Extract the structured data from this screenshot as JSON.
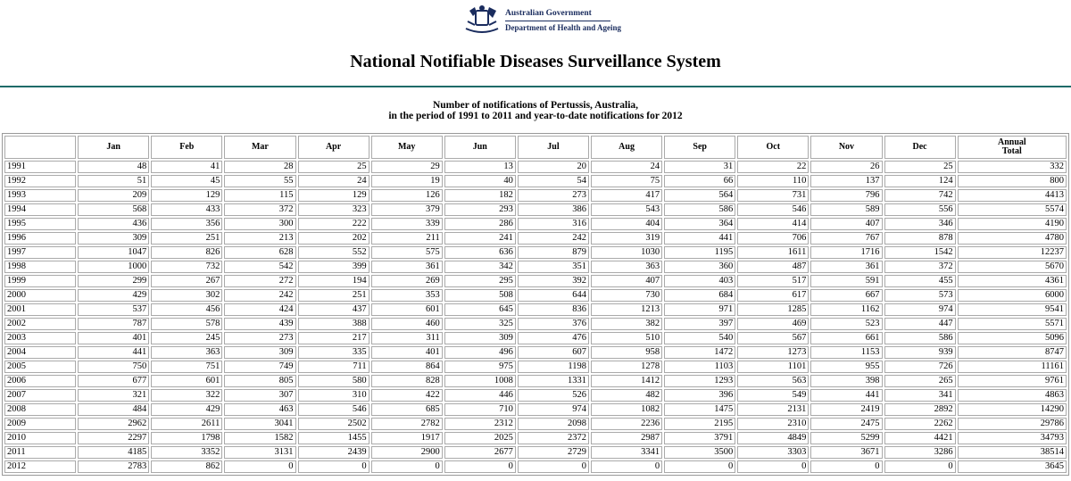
{
  "header": {
    "logo_lines": [
      "Australian Government",
      "Department of Health and Ageing"
    ],
    "title": "National Notifiable Diseases Surveillance System"
  },
  "subtitle": [
    "Number of notifications of Pertussis, Australia,",
    "in the period of 1991 to 2011 and year-to-date notifications for 2012"
  ],
  "table": {
    "columns": [
      "Jan",
      "Feb",
      "Mar",
      "Apr",
      "May",
      "Jun",
      "Jul",
      "Aug",
      "Sep",
      "Oct",
      "Nov",
      "Dec",
      "Annual Total"
    ],
    "rows": [
      [
        "1991",
        48,
        41,
        28,
        25,
        29,
        13,
        20,
        24,
        31,
        22,
        26,
        25,
        332
      ],
      [
        "1992",
        51,
        45,
        55,
        24,
        19,
        40,
        54,
        75,
        66,
        110,
        137,
        124,
        800
      ],
      [
        "1993",
        209,
        129,
        115,
        129,
        126,
        182,
        273,
        417,
        564,
        731,
        796,
        742,
        4413
      ],
      [
        "1994",
        568,
        433,
        372,
        323,
        379,
        293,
        386,
        543,
        586,
        546,
        589,
        556,
        5574
      ],
      [
        "1995",
        436,
        356,
        300,
        222,
        339,
        286,
        316,
        404,
        364,
        414,
        407,
        346,
        4190
      ],
      [
        "1996",
        309,
        251,
        213,
        202,
        211,
        241,
        242,
        319,
        441,
        706,
        767,
        878,
        4780
      ],
      [
        "1997",
        1047,
        826,
        628,
        552,
        575,
        636,
        879,
        1030,
        1195,
        1611,
        1716,
        1542,
        12237
      ],
      [
        "1998",
        1000,
        732,
        542,
        399,
        361,
        342,
        351,
        363,
        360,
        487,
        361,
        372,
        5670
      ],
      [
        "1999",
        299,
        267,
        272,
        194,
        269,
        295,
        392,
        407,
        403,
        517,
        591,
        455,
        4361
      ],
      [
        "2000",
        429,
        302,
        242,
        251,
        353,
        508,
        644,
        730,
        684,
        617,
        667,
        573,
        6000
      ],
      [
        "2001",
        537,
        456,
        424,
        437,
        601,
        645,
        836,
        1213,
        971,
        1285,
        1162,
        974,
        9541
      ],
      [
        "2002",
        787,
        578,
        439,
        388,
        460,
        325,
        376,
        382,
        397,
        469,
        523,
        447,
        5571
      ],
      [
        "2003",
        401,
        245,
        273,
        217,
        311,
        309,
        476,
        510,
        540,
        567,
        661,
        586,
        5096
      ],
      [
        "2004",
        441,
        363,
        309,
        335,
        401,
        496,
        607,
        958,
        1472,
        1273,
        1153,
        939,
        8747
      ],
      [
        "2005",
        750,
        751,
        749,
        711,
        864,
        975,
        1198,
        1278,
        1103,
        1101,
        955,
        726,
        11161
      ],
      [
        "2006",
        677,
        601,
        805,
        580,
        828,
        1008,
        1331,
        1412,
        1293,
        563,
        398,
        265,
        9761
      ],
      [
        "2007",
        321,
        322,
        307,
        310,
        422,
        446,
        526,
        482,
        396,
        549,
        441,
        341,
        4863
      ],
      [
        "2008",
        484,
        429,
        463,
        546,
        685,
        710,
        974,
        1082,
        1475,
        2131,
        2419,
        2892,
        14290
      ],
      [
        "2009",
        2962,
        2611,
        3041,
        2502,
        2782,
        2312,
        2098,
        2236,
        2195,
        2310,
        2475,
        2262,
        29786
      ],
      [
        "2010",
        2297,
        1798,
        1582,
        1455,
        1917,
        2025,
        2372,
        2987,
        3791,
        4849,
        5299,
        4421,
        34793
      ],
      [
        "2011",
        4185,
        3352,
        3131,
        2439,
        2900,
        2677,
        2729,
        3341,
        3500,
        3303,
        3671,
        3286,
        38514
      ],
      [
        "2012",
        2783,
        862,
        0,
        0,
        0,
        0,
        0,
        0,
        0,
        0,
        0,
        0,
        3645
      ]
    ]
  }
}
